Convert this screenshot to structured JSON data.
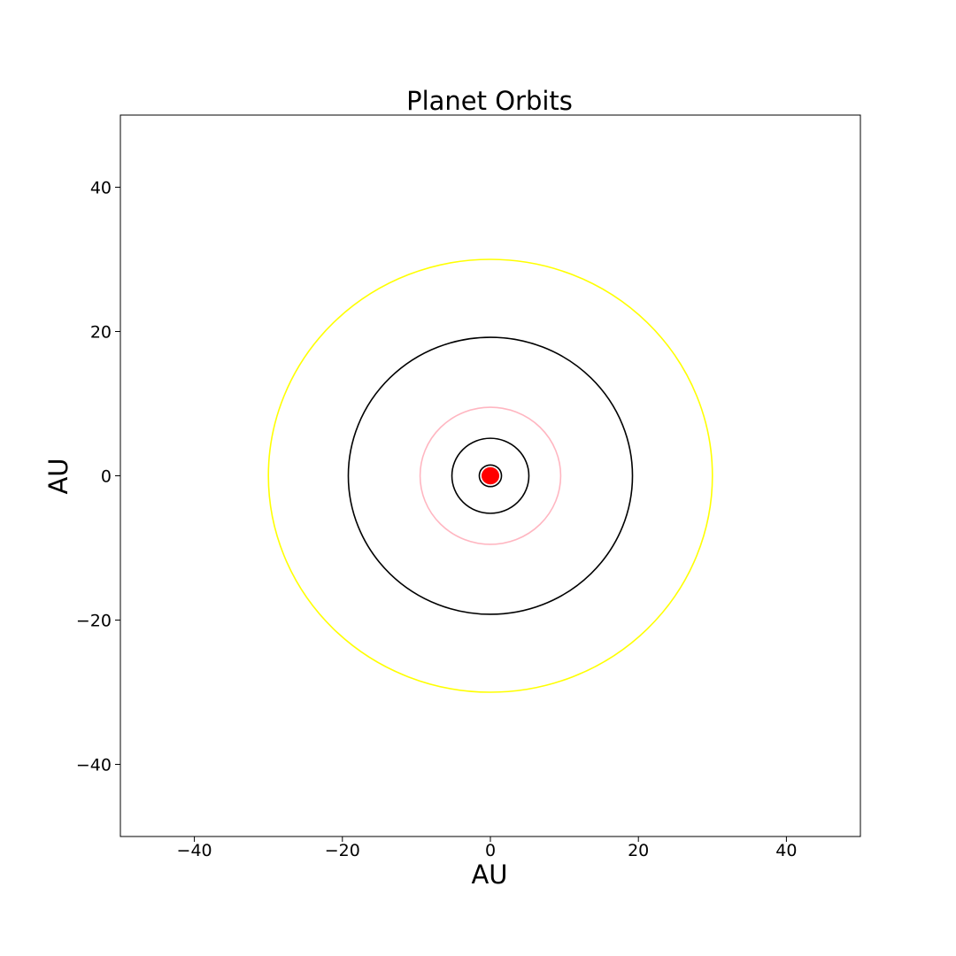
{
  "chart_data": {
    "type": "scatter",
    "title": "Planet Orbits",
    "xlabel": "AU",
    "ylabel": "AU",
    "xlim": [
      -50,
      50
    ],
    "ylim": [
      -50,
      50
    ],
    "xticks": [
      -40,
      -20,
      0,
      20,
      40
    ],
    "yticks": [
      -40,
      -20,
      0,
      20,
      40
    ],
    "xtick_labels": [
      "−40",
      "−20",
      "0",
      "20",
      "40"
    ],
    "ytick_labels": [
      "−40",
      "−20",
      "0",
      "20",
      "40"
    ],
    "grid": false,
    "orbits": [
      {
        "radius": 1.5,
        "color": "#000000"
      },
      {
        "radius": 5.2,
        "color": "#000000"
      },
      {
        "radius": 9.5,
        "color": "#ffb6c1"
      },
      {
        "radius": 19.2,
        "color": "#000000"
      },
      {
        "radius": 30.0,
        "color": "#ffff00"
      }
    ],
    "sun": {
      "x": 0,
      "y": 0,
      "radius": 1.2,
      "color": "#ff0000"
    }
  }
}
